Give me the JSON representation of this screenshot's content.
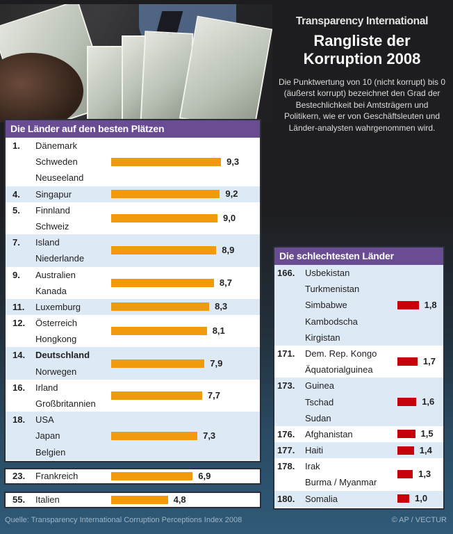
{
  "header": {
    "supertitle": "Transparency International",
    "title_line1": "Rangliste der",
    "title_line2": "Korruption 2008",
    "description": "Die Punktwertung von 10 (nicht korrupt) bis 0 (äußerst korrupt) bezeichnet den Grad der Bestechlichkeit bei Amtsträgern und Politikern, wie er von Geschäftsleuten und Länder-analysten wahrgenommen wird."
  },
  "best": {
    "title": "Die Länder auf den besten Plätzen",
    "groups": [
      {
        "rank": "1.",
        "countries": [
          "Dänemark",
          "Schweden",
          "Neuseeland"
        ],
        "score": "9,3",
        "value": 9.3
      },
      {
        "rank": "4.",
        "countries": [
          "Singapur"
        ],
        "score": "9,2",
        "value": 9.2
      },
      {
        "rank": "5.",
        "countries": [
          "Finnland",
          "Schweiz"
        ],
        "score": "9,0",
        "value": 9.0
      },
      {
        "rank": "7.",
        "countries": [
          "Island",
          "Niederlande"
        ],
        "score": "8,9",
        "value": 8.9
      },
      {
        "rank": "9.",
        "countries": [
          "Australien",
          "Kanada"
        ],
        "score": "8,7",
        "value": 8.7
      },
      {
        "rank": "11.",
        "countries": [
          "Luxemburg"
        ],
        "score": "8,3",
        "value": 8.3
      },
      {
        "rank": "12.",
        "countries": [
          "Österreich",
          "Hongkong"
        ],
        "score": "8,1",
        "value": 8.1
      },
      {
        "rank": "14.",
        "countries": [
          "Deutschland",
          "Norwegen"
        ],
        "score": "7,9",
        "value": 7.9
      },
      {
        "rank": "16.",
        "countries": [
          "Irland",
          "Großbritannien"
        ],
        "score": "7,7",
        "value": 7.7
      },
      {
        "rank": "18.",
        "countries": [
          "USA",
          "Japan",
          "Belgien"
        ],
        "score": "7,3",
        "value": 7.3
      }
    ],
    "extra": [
      {
        "rank": "23.",
        "countries": [
          "Frankreich"
        ],
        "score": "6,9",
        "value": 6.9
      },
      {
        "rank": "55.",
        "countries": [
          "Italien"
        ],
        "score": "4,8",
        "value": 4.8
      }
    ]
  },
  "worst": {
    "title": "Die schlechtesten Länder",
    "groups": [
      {
        "rank": "166.",
        "countries": [
          "Usbekistan",
          "Turkmenistan",
          "Simbabwe",
          "Kambodscha",
          "Kirgistan"
        ],
        "score": "1,8",
        "value": 1.8
      },
      {
        "rank": "171.",
        "countries": [
          "Dem. Rep. Kongo",
          "Äquatorialguinea"
        ],
        "score": "1,7",
        "value": 1.7
      },
      {
        "rank": "173.",
        "countries": [
          "Guinea",
          "Tschad",
          "Sudan"
        ],
        "score": "1,6",
        "value": 1.6
      },
      {
        "rank": "176.",
        "countries": [
          "Afghanistan"
        ],
        "score": "1,5",
        "value": 1.5
      },
      {
        "rank": "177.",
        "countries": [
          "Haiti"
        ],
        "score": "1,4",
        "value": 1.4
      },
      {
        "rank": "178.",
        "countries": [
          "Irak",
          "Burma / Myanmar"
        ],
        "score": "1,3",
        "value": 1.3
      },
      {
        "rank": "180.",
        "countries": [
          "Somalia"
        ],
        "score": "1,0",
        "value": 1.0
      }
    ]
  },
  "footer": {
    "source": "Quelle: Transparency International Corruption Perceptions Index 2008",
    "credit": "© AP / VECTUR"
  },
  "colors": {
    "header_purple": "#6a4c93",
    "bar_best": "#f19a0e",
    "bar_worst": "#c5000b",
    "row_alt": "#dde9f4"
  },
  "chart_data": [
    {
      "type": "bar",
      "title": "Die Länder auf den besten Plätzen",
      "orientation": "horizontal",
      "categories": [
        "1. Dänemark / Schweden / Neuseeland",
        "4. Singapur",
        "5. Finnland / Schweiz",
        "7. Island / Niederlande",
        "9. Australien / Kanada",
        "11. Luxemburg",
        "12. Österreich / Hongkong",
        "14. Deutschland / Norwegen",
        "16. Irland / Großbritannien",
        "18. USA / Japan / Belgien",
        "23. Frankreich",
        "55. Italien"
      ],
      "values": [
        9.3,
        9.2,
        9.0,
        8.9,
        8.7,
        8.3,
        8.1,
        7.9,
        7.7,
        7.3,
        6.9,
        4.8
      ],
      "xlabel": "",
      "ylabel": "",
      "xlim": [
        0,
        10
      ],
      "grid": false,
      "color": "#f19a0e"
    },
    {
      "type": "bar",
      "title": "Die schlechtesten Länder",
      "orientation": "horizontal",
      "categories": [
        "166. Usbekistan / Turkmenistan / Simbabwe / Kambodscha / Kirgistan",
        "171. Dem. Rep. Kongo / Äquatorialguinea",
        "173. Guinea / Tschad / Sudan",
        "176. Afghanistan",
        "177. Haiti",
        "178. Irak / Burma / Myanmar",
        "180. Somalia"
      ],
      "values": [
        1.8,
        1.7,
        1.6,
        1.5,
        1.4,
        1.3,
        1.0
      ],
      "xlabel": "",
      "ylabel": "",
      "xlim": [
        0,
        10
      ],
      "grid": false,
      "color": "#c5000b"
    }
  ]
}
